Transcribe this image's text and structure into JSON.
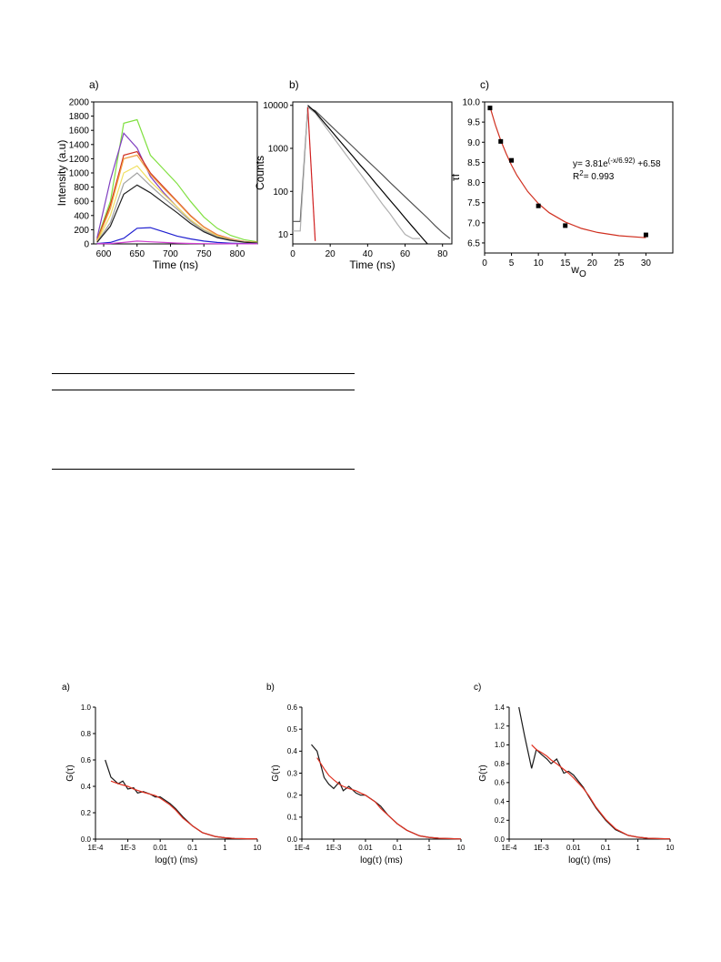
{
  "chart_data": [
    {
      "type": "line",
      "panel_label": "a)",
      "x_label": "Time (ns)",
      "y_label": "Intensity (a.u)",
      "x": [
        590,
        610,
        630,
        650,
        670,
        690,
        710,
        730,
        750,
        770,
        790,
        810,
        830
      ],
      "xlim": [
        585,
        830
      ],
      "xticks": [
        600,
        650,
        700,
        750,
        800
      ],
      "ylim": [
        0,
        2000
      ],
      "yticks": [
        0,
        200,
        400,
        600,
        800,
        1000,
        1200,
        1400,
        1600,
        1800,
        2000
      ],
      "series": [
        {
          "color": "#80e040",
          "values": [
            60,
            600,
            1700,
            1750,
            1250,
            1050,
            850,
            600,
            380,
            220,
            120,
            60,
            30
          ]
        },
        {
          "color": "#8040c0",
          "values": [
            80,
            900,
            1560,
            1350,
            950,
            720,
            520,
            340,
            200,
            110,
            60,
            30,
            15
          ]
        },
        {
          "color": "#d03020",
          "values": [
            50,
            550,
            1250,
            1300,
            1000,
            800,
            600,
            400,
            240,
            130,
            70,
            35,
            20
          ]
        },
        {
          "color": "#f0a040",
          "values": [
            40,
            500,
            1200,
            1250,
            980,
            780,
            590,
            390,
            235,
            125,
            65,
            32,
            18
          ]
        },
        {
          "color": "#f0e060",
          "values": [
            30,
            400,
            1000,
            1100,
            880,
            700,
            520,
            340,
            200,
            110,
            60,
            30,
            15
          ]
        },
        {
          "color": "#a0a0a0",
          "values": [
            25,
            300,
            850,
            1000,
            820,
            650,
            490,
            320,
            190,
            100,
            55,
            28,
            14
          ]
        },
        {
          "color": "#202020",
          "values": [
            20,
            250,
            700,
            830,
            720,
            580,
            440,
            290,
            170,
            90,
            50,
            25,
            12
          ]
        },
        {
          "color": "#2020d0",
          "values": [
            5,
            20,
            80,
            220,
            230,
            170,
            110,
            70,
            40,
            20,
            10,
            5,
            3
          ]
        },
        {
          "color": "#d040d0",
          "values": [
            2,
            5,
            20,
            40,
            30,
            20,
            12,
            7,
            4,
            2,
            1,
            1,
            1
          ]
        }
      ]
    },
    {
      "type": "line",
      "panel_label": "b)",
      "x_label": "Time (ns)",
      "y_label": "Counts",
      "ylog": true,
      "x": [
        0,
        4,
        8,
        12,
        16,
        20,
        24,
        28,
        32,
        36,
        40,
        44,
        48,
        52,
        56,
        60,
        64,
        68,
        72,
        76,
        80,
        84
      ],
      "xlim": [
        0,
        85
      ],
      "xticks": [
        0,
        20,
        40,
        60,
        80
      ],
      "ylim": [
        6,
        12000
      ],
      "yticks": [
        10,
        100,
        1000,
        10000
      ],
      "series": [
        {
          "color": "#505050",
          "values": [
            20,
            20,
            9000,
            7500,
            5110,
            3480,
            2370,
            1620,
            1100,
            750,
            510,
            350,
            240,
            160,
            110,
            75,
            51,
            35,
            24,
            16,
            11,
            8
          ]
        },
        {
          "color": "#b0b0b0",
          "values": [
            12,
            12,
            9000,
            6660,
            3870,
            2250,
            1310,
            760,
            440,
            260,
            150,
            87,
            50,
            30,
            17,
            10,
            8,
            8,
            null,
            null,
            null,
            null
          ]
        },
        {
          "color": "#000000",
          "values": [
            null,
            null,
            10000,
            7010,
            4380,
            2730,
            1700,
            1060,
            660,
            410,
            260,
            160,
            100,
            62,
            39,
            24,
            15,
            9.5,
            6,
            null,
            null,
            null
          ]
        },
        {
          "color": "#d02020",
          "values": [
            null,
            null,
            9000,
            7,
            null,
            null,
            null,
            null,
            null,
            null,
            null,
            null,
            null,
            null,
            null,
            null,
            null,
            null,
            null,
            null,
            null,
            null
          ]
        }
      ]
    },
    {
      "type": "scatter",
      "panel_label": "c)",
      "x_label": "w",
      "x_label_sub": "O",
      "y_label": "τf",
      "xlim": [
        0,
        35
      ],
      "xticks": [
        0,
        5,
        10,
        15,
        20,
        25,
        30
      ],
      "ylim": [
        6.25,
        10
      ],
      "yticks": [
        6.5,
        {
          "value": 7,
          "label": "7.0"
        },
        7.5,
        {
          "value": 8,
          "label": "8.0"
        },
        8.5,
        {
          "value": 9,
          "label": "9.0"
        },
        9.5,
        {
          "value": 10,
          "label": "10.0"
        }
      ],
      "annotations": [
        [
          "y= 3.81e",
          "(-x/6.92)",
          " +6.58"
        ],
        [
          "R",
          "2",
          "= 0.993"
        ]
      ],
      "series": [
        {
          "style": "line",
          "color": "#d03020",
          "x": [
            1,
            2,
            3,
            4,
            5,
            6,
            8,
            10,
            12,
            15,
            18,
            21,
            25,
            30
          ],
          "values": [
            9.88,
            9.43,
            9.05,
            8.72,
            8.43,
            8.18,
            7.78,
            7.48,
            7.25,
            7.02,
            6.86,
            6.76,
            6.68,
            6.63
          ]
        },
        {
          "style": "markers",
          "color": "#000000",
          "x": [
            1,
            3,
            5,
            10,
            15,
            30
          ],
          "values": [
            9.85,
            9.02,
            8.55,
            7.42,
            6.93,
            6.7
          ]
        }
      ]
    },
    {
      "type": "line",
      "panel_label": "a)",
      "x_label": "log(τ) (ms)",
      "y_label": "G(τ)",
      "xlog": true,
      "x": [
        0.0002,
        0.0003,
        0.0005,
        0.0007,
        0.001,
        0.0015,
        0.002,
        0.003,
        0.005,
        0.007,
        0.01,
        0.02,
        0.03,
        0.05,
        0.1,
        0.2,
        0.5,
        1,
        2,
        5,
        10
      ],
      "xlim": [
        0.0001,
        10
      ],
      "xticks": [
        {
          "value": 0.0001,
          "label": "1E-4"
        },
        {
          "value": 0.001,
          "label": "1E-3"
        },
        0.01,
        0.1,
        1,
        10
      ],
      "ylim": [
        0,
        1
      ],
      "yticks": [
        {
          "value": 0,
          "label": "0.0"
        },
        0.2,
        0.4,
        0.6,
        0.8,
        {
          "value": 1,
          "label": "1.0"
        }
      ],
      "series": [
        {
          "color": "#1a1a1a",
          "values": [
            0.6,
            0.47,
            0.42,
            0.44,
            0.38,
            0.39,
            0.35,
            0.36,
            0.34,
            0.32,
            0.32,
            0.27,
            0.23,
            0.17,
            0.1,
            0.05,
            0.02,
            0.01,
            0.005,
            0.003,
            0.002
          ]
        },
        {
          "color": "#e03020",
          "values": [
            null,
            0.44,
            0.42,
            0.41,
            0.4,
            0.38,
            0.37,
            0.355,
            0.34,
            0.33,
            0.31,
            0.26,
            0.22,
            0.16,
            0.1,
            0.05,
            0.02,
            0.01,
            0.005,
            0.003,
            0.002
          ]
        }
      ]
    },
    {
      "type": "line",
      "panel_label": "b)",
      "x_label": "log(τ) (ms)",
      "y_label": "G(τ)",
      "xlog": true,
      "x": [
        0.0002,
        0.0003,
        0.0005,
        0.0007,
        0.001,
        0.0015,
        0.002,
        0.003,
        0.005,
        0.007,
        0.01,
        0.02,
        0.03,
        0.05,
        0.1,
        0.2,
        0.5,
        1,
        2,
        5,
        10
      ],
      "xlim": [
        0.0001,
        10
      ],
      "xticks": [
        {
          "value": 0.0001,
          "label": "1E-4"
        },
        {
          "value": 0.001,
          "label": "1E-3"
        },
        0.01,
        0.1,
        1,
        10
      ],
      "ylim": [
        0,
        0.6
      ],
      "yticks": [
        {
          "value": 0,
          "label": "0.0"
        },
        0.1,
        0.2,
        0.3,
        0.4,
        0.5,
        0.6
      ],
      "series": [
        {
          "color": "#1a1a1a",
          "values": [
            0.43,
            0.4,
            0.28,
            0.25,
            0.23,
            0.26,
            0.22,
            0.24,
            0.21,
            0.2,
            0.2,
            0.17,
            0.15,
            0.11,
            0.07,
            0.04,
            0.015,
            0.008,
            0.004,
            0.002,
            0.001
          ]
        },
        {
          "color": "#e03020",
          "values": [
            null,
            0.37,
            0.32,
            0.29,
            0.27,
            0.25,
            0.24,
            0.23,
            0.22,
            0.21,
            0.2,
            0.17,
            0.14,
            0.11,
            0.07,
            0.04,
            0.015,
            0.008,
            0.004,
            0.002,
            0.001
          ]
        }
      ]
    },
    {
      "type": "line",
      "panel_label": "c)",
      "x_label": "log(τ) (ms)",
      "y_label": "G(τ)",
      "xlog": true,
      "x": [
        0.0002,
        0.0003,
        0.0005,
        0.0007,
        0.001,
        0.0015,
        0.002,
        0.003,
        0.005,
        0.007,
        0.01,
        0.02,
        0.03,
        0.05,
        0.1,
        0.2,
        0.5,
        1,
        2,
        5,
        10
      ],
      "xlim": [
        0.0001,
        10
      ],
      "xticks": [
        {
          "value": 0.0001,
          "label": "1E-4"
        },
        {
          "value": 0.001,
          "label": "1E-3"
        },
        0.01,
        0.1,
        1,
        10
      ],
      "ylim": [
        0,
        1.4
      ],
      "yticks": [
        {
          "value": 0,
          "label": "0.0"
        },
        0.2,
        0.4,
        0.6,
        0.8,
        {
          "value": 1,
          "label": "1.0"
        },
        1.2,
        1.4
      ],
      "series": [
        {
          "color": "#1a1a1a",
          "values": [
            1.4,
            1.1,
            0.75,
            0.95,
            0.9,
            0.85,
            0.8,
            0.85,
            0.7,
            0.72,
            0.68,
            0.55,
            0.45,
            0.33,
            0.2,
            0.1,
            0.04,
            0.02,
            0.01,
            0.005,
            0.003
          ]
        },
        {
          "color": "#e03020",
          "values": [
            null,
            null,
            1.0,
            0.95,
            0.92,
            0.88,
            0.84,
            0.8,
            0.74,
            0.7,
            0.65,
            0.54,
            0.46,
            0.34,
            0.21,
            0.11,
            0.04,
            0.02,
            0.01,
            0.005,
            0.003
          ]
        }
      ]
    }
  ]
}
